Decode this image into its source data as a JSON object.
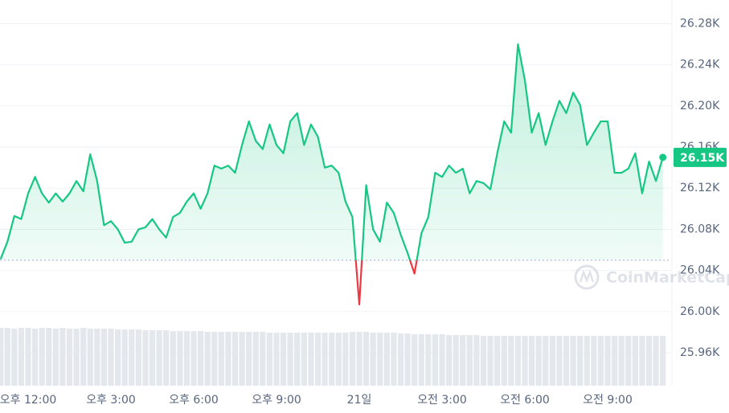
{
  "chart_data": {
    "type": "line",
    "x": [
      11,
      11.25,
      11.5,
      11.75,
      12,
      12.25,
      12.5,
      12.75,
      13,
      13.25,
      13.5,
      13.75,
      14,
      14.25,
      14.5,
      14.75,
      15,
      15.25,
      15.5,
      15.75,
      16,
      16.25,
      16.5,
      16.75,
      17,
      17.25,
      17.5,
      17.75,
      18,
      18.25,
      18.5,
      18.75,
      19,
      19.25,
      19.5,
      19.75,
      20,
      20.25,
      20.5,
      20.75,
      21,
      21.25,
      21.5,
      21.75,
      22,
      22.25,
      22.5,
      22.75,
      23,
      23.25,
      23.5,
      23.75,
      24,
      24.25,
      24.5,
      24.75,
      25,
      25.25,
      25.5,
      25.75,
      26,
      26.25,
      26.5,
      26.75,
      27,
      27.25,
      27.5,
      27.75,
      28,
      28.25,
      28.5,
      28.75,
      29,
      29.25,
      29.5,
      29.75,
      30,
      30.25,
      30.5,
      30.75,
      31,
      31.25,
      31.5,
      31.75,
      32,
      32.25,
      32.5,
      32.75,
      33,
      33.25,
      33.5,
      33.75,
      34,
      34.25,
      34.5,
      34.75,
      35
    ],
    "series": [
      {
        "color": "#16c784",
        "below_color": "#ea3943",
        "values": [
          26051,
          26068,
          26093,
          26090,
          26115,
          26131,
          26115,
          26106,
          26115,
          26107,
          26115,
          26127,
          26117,
          26153,
          26127,
          26084,
          26088,
          26080,
          26067,
          26068,
          26080,
          26082,
          26090,
          26080,
          26072,
          26092,
          26096,
          26107,
          26115,
          26100,
          26115,
          26142,
          26139,
          26142,
          26135,
          26162,
          26185,
          26166,
          26158,
          26182,
          26162,
          26154,
          26185,
          26193,
          26162,
          26182,
          26170,
          26140,
          26142,
          26135,
          26107,
          26092,
          26007,
          26123,
          26080,
          26068,
          26106,
          26096,
          26075,
          26057,
          26037,
          26076,
          26092,
          26135,
          26131,
          26142,
          26135,
          26139,
          26115,
          26127,
          26125,
          26119,
          26154,
          26185,
          26174,
          26260,
          26225,
          26174,
          26193,
          26162,
          26185,
          26205,
          26193,
          26213,
          26201,
          26162,
          26174,
          26185,
          26185,
          26135,
          26135,
          26139,
          26154,
          26115,
          26146,
          26127,
          26150
        ]
      }
    ],
    "volume": [
      72,
      72,
      71,
      72,
      72,
      71,
      72,
      72,
      71,
      72,
      71,
      71,
      72,
      71,
      71,
      71,
      71,
      70,
      70,
      70,
      70,
      69,
      69,
      69,
      69,
      68,
      68,
      68,
      68,
      68,
      67,
      67,
      67,
      67,
      67,
      67,
      67,
      67,
      67,
      66,
      66,
      66,
      66,
      66,
      66,
      66,
      66,
      66,
      66,
      66,
      66,
      67,
      67,
      67,
      66,
      66,
      66,
      66,
      65,
      65,
      64,
      64,
      64,
      64,
      64,
      63,
      63,
      63,
      63,
      63,
      62,
      62,
      62,
      62,
      62,
      62,
      62,
      62,
      62,
      62,
      62,
      62,
      62,
      62,
      62,
      62,
      62,
      62,
      62,
      62,
      62,
      62,
      62,
      62,
      62,
      62,
      62
    ],
    "baseline": 26050,
    "last_price_label": "26.15K",
    "watermark": "CoinMarketCap",
    "xlim": [
      10.98,
      35.3
    ],
    "xticks": [
      {
        "value": 12,
        "label": "오후 12:00"
      },
      {
        "value": 15,
        "label": "오후 3:00"
      },
      {
        "value": 18,
        "label": "오후 6:00"
      },
      {
        "value": 21,
        "label": "오후 9:00"
      },
      {
        "value": 24,
        "label": "21일"
      },
      {
        "value": 27,
        "label": "오전 3:00"
      },
      {
        "value": 30,
        "label": "오전 6:00"
      },
      {
        "value": 33,
        "label": "오전 9:00"
      }
    ],
    "ylim": [
      25928,
      26303
    ],
    "yticks": [
      {
        "value": 26280,
        "label": "26.28K"
      },
      {
        "value": 26240,
        "label": "26.24K"
      },
      {
        "value": 26200,
        "label": "26.20K"
      },
      {
        "value": 26160,
        "label": "26.16K"
      },
      {
        "value": 26120,
        "label": "26.12K"
      },
      {
        "value": 26080,
        "label": "26.08K"
      },
      {
        "value": 26040,
        "label": "26.04K"
      },
      {
        "value": 26000,
        "label": "26.00K"
      },
      {
        "value": 25960,
        "label": "25.96K"
      }
    ],
    "grid": true
  }
}
